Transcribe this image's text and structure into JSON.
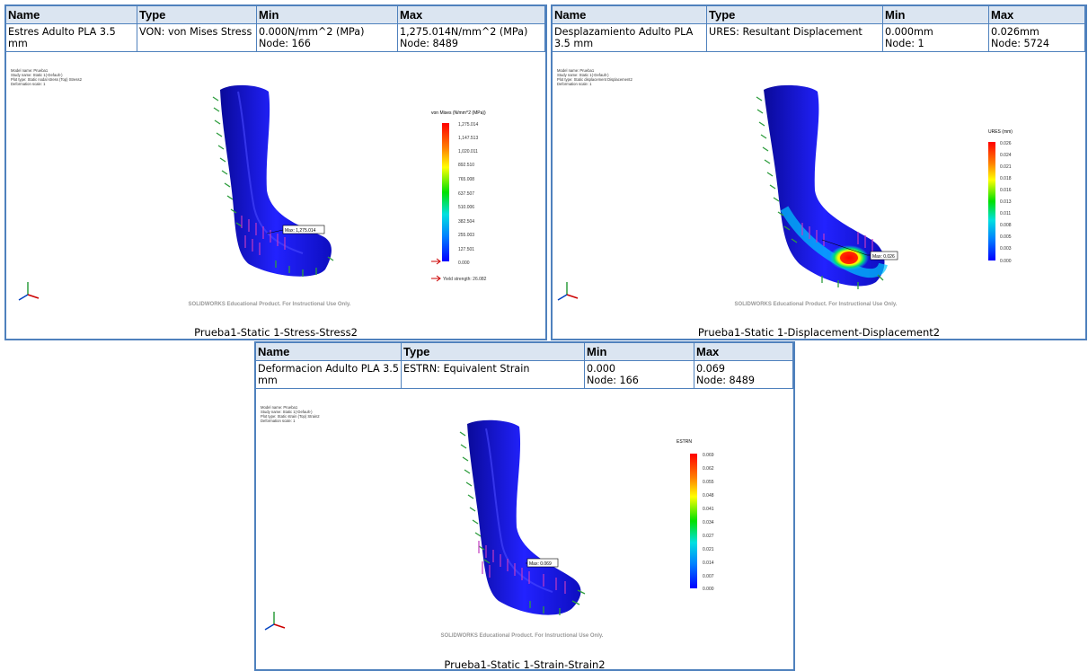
{
  "headers": {
    "name": "Name",
    "type": "Type",
    "min": "Min",
    "max": "Max"
  },
  "watermark": "SOLIDWORKS Educational Product. For Instructional Use Only.",
  "stress": {
    "name": "Estres Adulto PLA 3.5 mm",
    "type": "VON: von Mises Stress",
    "min": "0.000N/mm^2 (MPa)",
    "min_node": "Node: 166",
    "max": "1,275.014N/mm^2 (MPa)",
    "max_node": "Node: 8489",
    "info": [
      "Model name: Prueba1",
      "Study name: Static 1(-Default-)",
      "Plot type: Static nodal stress (Top) Stress2",
      "Deformation scale: 1"
    ],
    "legend_title": "von Mises (N/mm^2 (MPa))",
    "legend_ticks": [
      "1,275.014",
      "1,147.513",
      "1,020.011",
      "892.510",
      "765.008",
      "637.507",
      "510.006",
      "382.504",
      "255.003",
      "127.501",
      "0.000"
    ],
    "yield": "Yield strength: 26.082",
    "max_label": "Max: 1,275.014",
    "caption": "Prueba1-Static 1-Stress-Stress2"
  },
  "displacement": {
    "name": "Desplazamiento Adulto PLA 3.5 mm",
    "type": "URES:   Resultant Displacement",
    "min": "0.000mm",
    "min_node": "Node: 1",
    "max": "0.026mm",
    "max_node": "Node: 5724",
    "info": [
      "Model name: Prueba1",
      "Study name: Static 1(-Default-)",
      "Plot type: Static displacement Displacement2",
      "Deformation scale: 1"
    ],
    "legend_title": "URES (mm)",
    "legend_ticks": [
      "0.026",
      "0.024",
      "0.021",
      "0.018",
      "0.016",
      "0.013",
      "0.011",
      "0.008",
      "0.005",
      "0.003",
      "0.000"
    ],
    "max_label": "Max: 0.026",
    "caption": "Prueba1-Static 1-Displacement-Displacement2"
  },
  "strain": {
    "name": "Deformacion Adulto PLA 3.5 mm",
    "type": "ESTRN: Equivalent Strain",
    "min": "0.000",
    "min_node": "Node: 166",
    "max": "0.069",
    "max_node": "Node: 8489",
    "info": [
      "Model name: Prueba1",
      "Study name: Static 1(-Default-)",
      "Plot type: Static strain (Top) Strain2",
      "Deformation scale: 1"
    ],
    "legend_title": "ESTRN",
    "legend_ticks": [
      "0.069",
      "0.062",
      "0.055",
      "0.048",
      "0.041",
      "0.034",
      "0.027",
      "0.021",
      "0.014",
      "0.007",
      "0.000"
    ],
    "max_label": "Max: 0.069",
    "caption": "Prueba1-Static 1-Strain-Strain2"
  },
  "colors": {
    "border": "#4f81bd",
    "header_bg": "#dbe5f1",
    "part": "#1a1ad8",
    "part_dark": "#0a0a8a",
    "fixture": "#2e9e3e",
    "load": "#c23bc2"
  }
}
